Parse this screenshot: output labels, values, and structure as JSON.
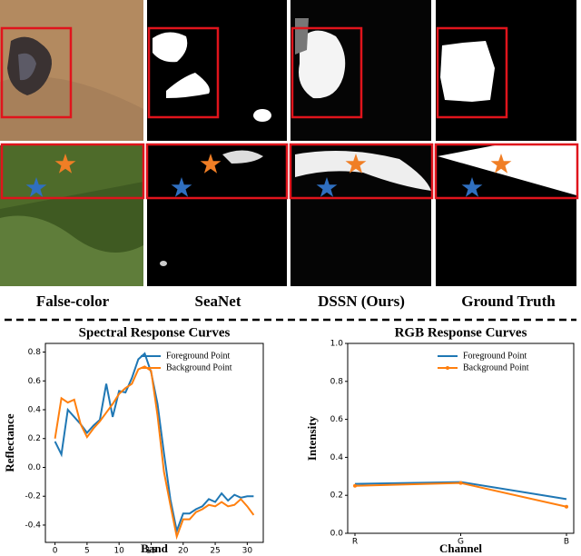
{
  "panel_labels": [
    "False-color",
    "SeaNet",
    "DSSN (Ours)",
    "Ground Truth"
  ],
  "chart_data": [
    {
      "type": "line",
      "title": "Spectral Response Curves",
      "x_label": "Band",
      "y_label": "Reflectance",
      "x": [
        0,
        1,
        2,
        3,
        4,
        5,
        6,
        7,
        8,
        9,
        10,
        11,
        12,
        13,
        14,
        15,
        16,
        17,
        18,
        19,
        20,
        21,
        22,
        23,
        24,
        25,
        26,
        27,
        28,
        29,
        30,
        31
      ],
      "series": [
        {
          "name": "Foreground Point",
          "color": "#1f77b4",
          "values": [
            0.18,
            0.09,
            0.4,
            0.35,
            0.3,
            0.24,
            0.29,
            0.33,
            0.58,
            0.35,
            0.53,
            0.52,
            0.62,
            0.75,
            0.79,
            0.66,
            0.44,
            0.1,
            -0.22,
            -0.44,
            -0.32,
            -0.32,
            -0.29,
            -0.27,
            -0.22,
            -0.24,
            -0.18,
            -0.23,
            -0.19,
            -0.21,
            -0.2,
            -0.2
          ]
        },
        {
          "name": "Background Point",
          "color": "#ff7f0e",
          "values": [
            0.2,
            0.48,
            0.45,
            0.47,
            0.3,
            0.21,
            0.27,
            0.32,
            0.38,
            0.44,
            0.51,
            0.55,
            0.58,
            0.68,
            0.7,
            0.67,
            0.36,
            -0.03,
            -0.26,
            -0.48,
            -0.36,
            -0.36,
            -0.31,
            -0.29,
            -0.26,
            -0.27,
            -0.24,
            -0.27,
            -0.26,
            -0.22,
            -0.27,
            -0.33
          ]
        }
      ],
      "xlim": [
        -1.5,
        32.5
      ],
      "ylim": [
        -0.52,
        0.86
      ],
      "xticks": [
        0,
        5,
        10,
        15,
        20,
        25,
        30
      ],
      "yticks": [
        -0.4,
        -0.2,
        {
          "value": 0,
          "label": "0.0"
        },
        0.2,
        0.4,
        0.6,
        0.8
      ],
      "legend": "upper right"
    },
    {
      "type": "line",
      "title": "RGB Response Curves",
      "x_label": "Channel",
      "y_label": "Intensity",
      "categories": [
        "R",
        "G",
        "B"
      ],
      "series": [
        {
          "name": "Foreground Point",
          "color": "#1f77b4",
          "values": [
            0.26,
            0.27,
            0.18
          ]
        },
        {
          "name": "Background Point",
          "color": "#ff7f0e",
          "values": [
            0.25,
            0.265,
            0.14
          ],
          "marker": "."
        }
      ],
      "ylim": [
        0,
        1
      ],
      "yticks": [
        {
          "value": 0,
          "label": "0.0"
        },
        0.2,
        0.4,
        0.6,
        0.8,
        {
          "value": 1,
          "label": "1.0"
        }
      ],
      "legend": "upper right"
    }
  ]
}
